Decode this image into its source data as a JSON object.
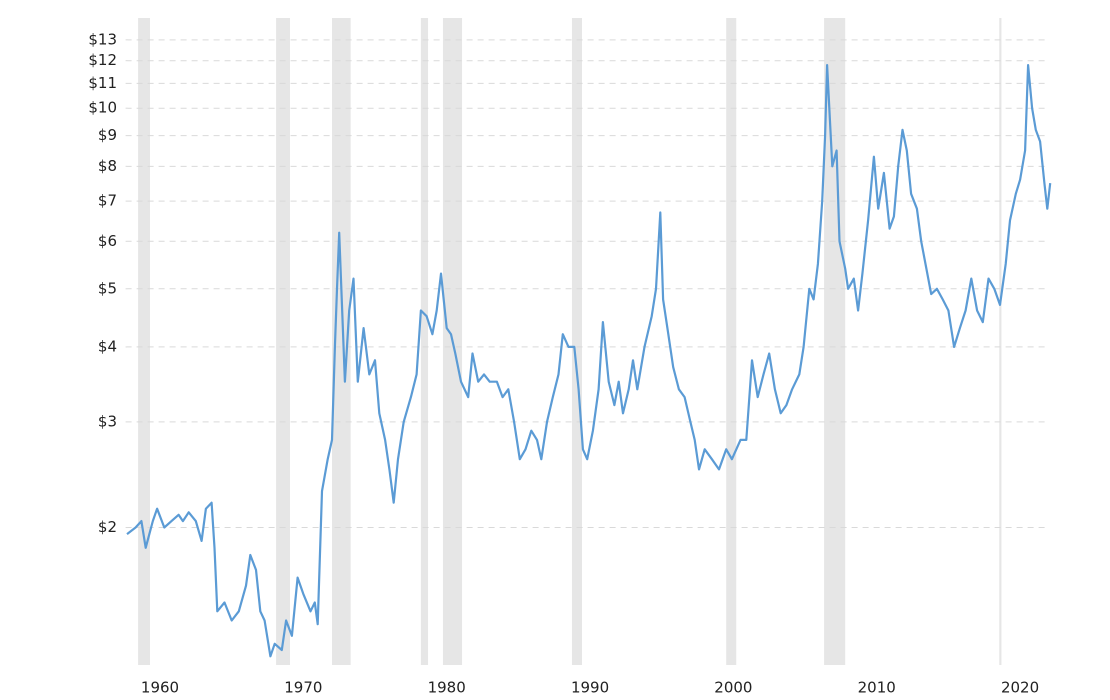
{
  "chart_data": {
    "type": "line",
    "log_y": true,
    "grid": true,
    "color": "#5b9bd5",
    "band_color": "#e6e6e6",
    "xlim": [
      1957.6,
      2022.5
    ],
    "xticks": [
      1960,
      1970,
      1980,
      1990,
      2000,
      2010,
      2020
    ],
    "ylim": [
      1.18,
      13.5
    ],
    "yticks": [
      {
        "value": 2,
        "label": "$2"
      },
      {
        "value": 3,
        "label": "$3"
      },
      {
        "value": 4,
        "label": "$4"
      },
      {
        "value": 5,
        "label": "$5"
      },
      {
        "value": 6,
        "label": "$6"
      },
      {
        "value": 7,
        "label": "$7"
      },
      {
        "value": 8,
        "label": "$8"
      },
      {
        "value": 9,
        "label": "$9"
      },
      {
        "value": 10,
        "label": "$10"
      },
      {
        "value": 11,
        "label": "$11"
      },
      {
        "value": 12,
        "label": "$12"
      },
      {
        "value": 13,
        "label": "$13"
      }
    ],
    "recessions": [
      [
        1958.47,
        1959.3
      ],
      [
        1968.1,
        1969.07
      ],
      [
        1972.0,
        1973.3
      ],
      [
        1978.2,
        1978.7
      ],
      [
        1979.74,
        1981.07
      ],
      [
        1988.74,
        1989.44
      ],
      [
        1999.5,
        2000.2
      ],
      [
        2006.33,
        2007.8
      ],
      [
        2018.55,
        2018.7
      ]
    ],
    "x": [
      1957.7,
      1958.3,
      1958.7,
      1959.0,
      1959.5,
      1959.8,
      1960.3,
      1960.8,
      1961.3,
      1961.6,
      1962.0,
      1962.5,
      1962.9,
      1963.2,
      1963.6,
      1963.8,
      1964.0,
      1964.5,
      1965.0,
      1965.5,
      1966.0,
      1966.3,
      1966.7,
      1967.0,
      1967.3,
      1967.7,
      1968.0,
      1968.5,
      1968.8,
      1969.2,
      1969.6,
      1970.0,
      1970.5,
      1970.8,
      1971.0,
      1971.3,
      1971.7,
      1972.0,
      1972.2,
      1972.35,
      1972.5,
      1972.9,
      1973.2,
      1973.5,
      1973.8,
      1974.2,
      1974.6,
      1975.0,
      1975.3,
      1975.7,
      1976.0,
      1976.3,
      1976.6,
      1977.0,
      1977.5,
      1977.9,
      1978.2,
      1978.6,
      1979.0,
      1979.3,
      1979.6,
      1980.0,
      1980.3,
      1980.6,
      1981.0,
      1981.5,
      1981.8,
      1982.2,
      1982.6,
      1983.0,
      1983.5,
      1983.9,
      1984.3,
      1984.7,
      1985.1,
      1985.5,
      1985.9,
      1986.3,
      1986.6,
      1987.0,
      1987.4,
      1987.8,
      1988.1,
      1988.5,
      1988.9,
      1989.2,
      1989.5,
      1989.8,
      1990.2,
      1990.6,
      1990.9,
      1991.3,
      1991.7,
      1992.0,
      1992.3,
      1992.7,
      1993.0,
      1993.3,
      1993.8,
      1994.3,
      1994.6,
      1994.9,
      1995.1,
      1995.4,
      1995.8,
      1996.2,
      1996.6,
      1997.0,
      1997.3,
      1997.6,
      1998.0,
      1998.5,
      1999.0,
      1999.5,
      1999.9,
      2000.5,
      2000.9,
      2001.3,
      2001.7,
      2002.1,
      2002.5,
      2002.9,
      2003.3,
      2003.7,
      2004.1,
      2004.6,
      2004.9,
      2005.3,
      2005.6,
      2005.9,
      2006.2,
      2006.4,
      2006.54,
      2006.9,
      2007.2,
      2007.4,
      2007.8,
      2008.0,
      2008.4,
      2008.7,
      2009.0,
      2009.4,
      2009.8,
      2010.1,
      2010.5,
      2010.9,
      2011.2,
      2011.5,
      2011.8,
      2012.1,
      2012.4,
      2012.8,
      2013.1,
      2013.4,
      2013.8,
      2014.2,
      2014.6,
      2015.0,
      2015.4,
      2015.8,
      2016.2,
      2016.6,
      2017.0,
      2017.4,
      2017.8,
      2018.2,
      2018.6,
      2019.0,
      2019.3,
      2019.7,
      2020.0,
      2020.35,
      2020.56,
      2020.84,
      2021.1,
      2021.4,
      2021.7,
      2021.9,
      2022.1
    ],
    "values": [
      1.95,
      2.0,
      2.05,
      1.85,
      2.05,
      2.15,
      2.0,
      2.05,
      2.1,
      2.05,
      2.12,
      2.05,
      1.9,
      2.15,
      2.2,
      1.85,
      1.45,
      1.5,
      1.4,
      1.45,
      1.6,
      1.8,
      1.7,
      1.45,
      1.4,
      1.22,
      1.28,
      1.25,
      1.4,
      1.32,
      1.65,
      1.55,
      1.45,
      1.5,
      1.38,
      2.3,
      2.6,
      2.8,
      4.0,
      5.0,
      6.2,
      3.5,
      4.6,
      5.2,
      3.5,
      4.3,
      3.6,
      3.8,
      3.1,
      2.8,
      2.5,
      2.2,
      2.6,
      3.0,
      3.3,
      3.6,
      4.6,
      4.5,
      4.2,
      4.6,
      5.3,
      4.3,
      4.2,
      3.9,
      3.5,
      3.3,
      3.9,
      3.5,
      3.6,
      3.5,
      3.5,
      3.3,
      3.4,
      3.0,
      2.6,
      2.7,
      2.9,
      2.8,
      2.6,
      3.0,
      3.3,
      3.6,
      4.2,
      4.0,
      4.0,
      3.4,
      2.7,
      2.6,
      2.9,
      3.4,
      4.4,
      3.5,
      3.2,
      3.5,
      3.1,
      3.4,
      3.8,
      3.4,
      4.0,
      4.5,
      5.0,
      6.7,
      4.8,
      4.3,
      3.7,
      3.4,
      3.3,
      3.0,
      2.8,
      2.5,
      2.7,
      2.6,
      2.5,
      2.7,
      2.6,
      2.8,
      2.8,
      3.8,
      3.3,
      3.6,
      3.9,
      3.4,
      3.1,
      3.2,
      3.4,
      3.6,
      4.0,
      5.0,
      4.8,
      5.5,
      7.0,
      9.0,
      11.8,
      8.0,
      8.5,
      6.0,
      5.4,
      5.0,
      5.2,
      4.6,
      5.3,
      6.5,
      8.3,
      6.8,
      7.8,
      6.3,
      6.6,
      8.0,
      9.2,
      8.5,
      7.2,
      6.8,
      6.0,
      5.5,
      4.9,
      5.0,
      4.8,
      4.6,
      4.0,
      4.3,
      4.6,
      5.2,
      4.6,
      4.4,
      5.2,
      5.0,
      4.7,
      5.5,
      6.5,
      7.2,
      7.6,
      8.5,
      11.8,
      10.0,
      9.2,
      8.8,
      7.5,
      6.8,
      7.5
    ]
  }
}
